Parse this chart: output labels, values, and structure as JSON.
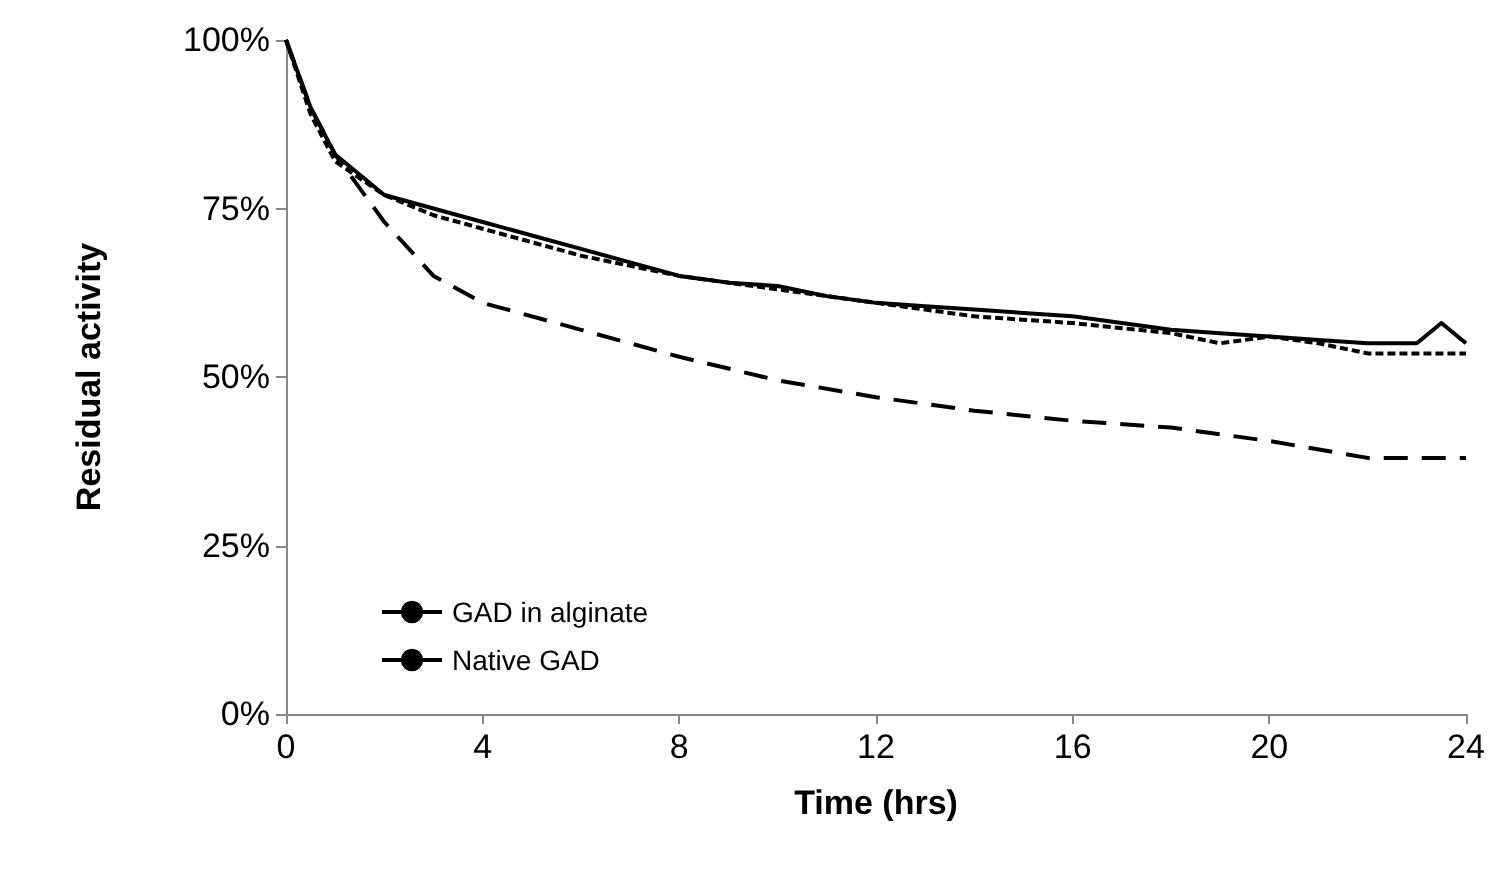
{
  "chart_data": {
    "type": "line",
    "xlabel": "Time (hrs)",
    "ylabel": "Residual activity",
    "xlim": [
      0,
      24
    ],
    "xticks": [
      0,
      4,
      8,
      12,
      16,
      20,
      24
    ],
    "ylim": [
      0,
      100
    ],
    "yticks": [
      {
        "value": 0,
        "label": "0%"
      },
      {
        "value": 25,
        "label": "25%"
      },
      {
        "value": 50,
        "label": "50%"
      },
      {
        "value": 75,
        "label": "75%"
      },
      {
        "value": 100,
        "label": "100%"
      }
    ],
    "grid": false,
    "legend": "bottom left",
    "marker": "none",
    "series": [
      {
        "name": "GAD in alginate",
        "color": "#000000",
        "line_style": "solid",
        "x": [
          0,
          0.5,
          1,
          1.5,
          2,
          3,
          4,
          5,
          6,
          7,
          8,
          9,
          10,
          11,
          12,
          13,
          14,
          15,
          16,
          17,
          18,
          19,
          20,
          21,
          22,
          23,
          23.5,
          24
        ],
        "values": [
          100,
          90,
          83,
          80,
          77,
          75,
          73,
          71,
          69,
          67,
          65,
          64,
          63.5,
          62,
          61,
          60.5,
          60,
          59.5,
          59,
          58,
          57,
          56.5,
          56,
          55.5,
          55,
          55,
          58,
          55
        ]
      },
      {
        "color": "#000000",
        "line_style": "dotted",
        "x": [
          0,
          0.5,
          1,
          2,
          3,
          4,
          6,
          8,
          10,
          12,
          14,
          16,
          18,
          19,
          20,
          21,
          22,
          24
        ],
        "values": [
          100,
          89,
          82,
          77,
          74,
          72,
          68,
          65,
          63,
          61,
          59,
          58,
          56.5,
          55,
          56,
          55,
          53.5,
          53.5
        ]
      },
      {
        "name": "Native GAD",
        "color": "#000000",
        "line_style": "dashed",
        "x": [
          0,
          0.5,
          1,
          2,
          3,
          4,
          6,
          8,
          10,
          12,
          14,
          16,
          18,
          20,
          22,
          24
        ],
        "values": [
          100,
          90,
          83,
          73,
          65,
          61,
          57,
          53,
          49.5,
          47,
          45,
          43.5,
          42.5,
          40.5,
          38,
          38
        ]
      }
    ]
  }
}
